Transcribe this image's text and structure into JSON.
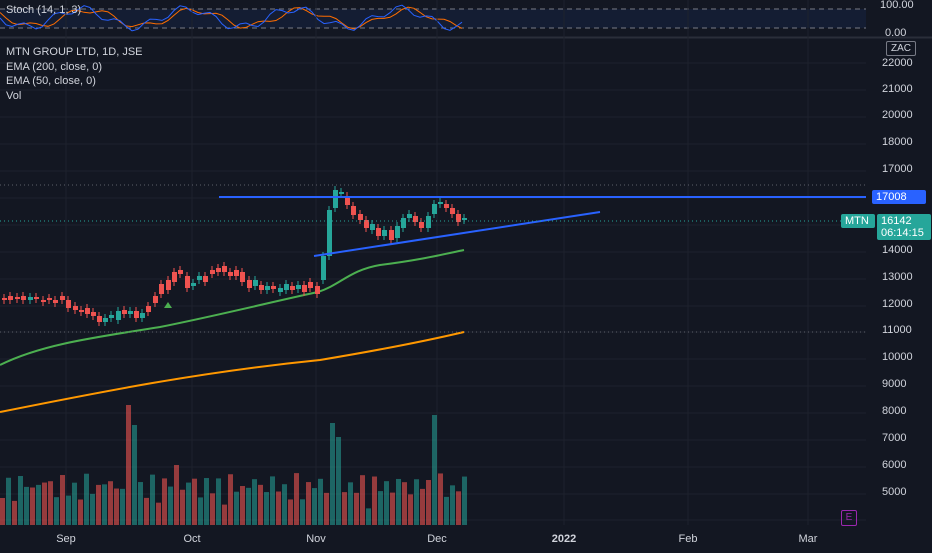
{
  "stoch_legend": "Stoch (14, 1, 3)",
  "stoch_scale": [
    "100.00",
    "0.00"
  ],
  "symbol_title": "MTN GROUP LTD, 1D, JSE",
  "indicators": [
    "EMA (200, close, 0)",
    "EMA (50, close, 0)",
    "Vol"
  ],
  "currency": "ZAC",
  "price_axis": [
    "22000",
    "21000",
    "20000",
    "18000",
    "17000",
    "16000",
    "15000",
    "14000",
    "13000",
    "12000",
    "11000",
    "10000",
    "9000",
    "8000",
    "7000",
    "6000",
    "5000"
  ],
  "time_axis": [
    "Sep",
    "Oct",
    "Nov",
    "Dec",
    "2022",
    "Feb",
    "Mar"
  ],
  "horizontal_line_label": "17008",
  "last_price": {
    "symbol": "MTN",
    "price": "16142",
    "countdown": "06:14:15"
  },
  "earnings_badge": "E",
  "colors": {
    "background": "#131722",
    "up": "#26a69a",
    "down": "#ef5350",
    "ema50": "#4caf50",
    "ema200": "#ff9800",
    "trendline": "#2962ff",
    "stoch_k": "#2962ff",
    "stoch_d": "#ff6d00"
  }
}
